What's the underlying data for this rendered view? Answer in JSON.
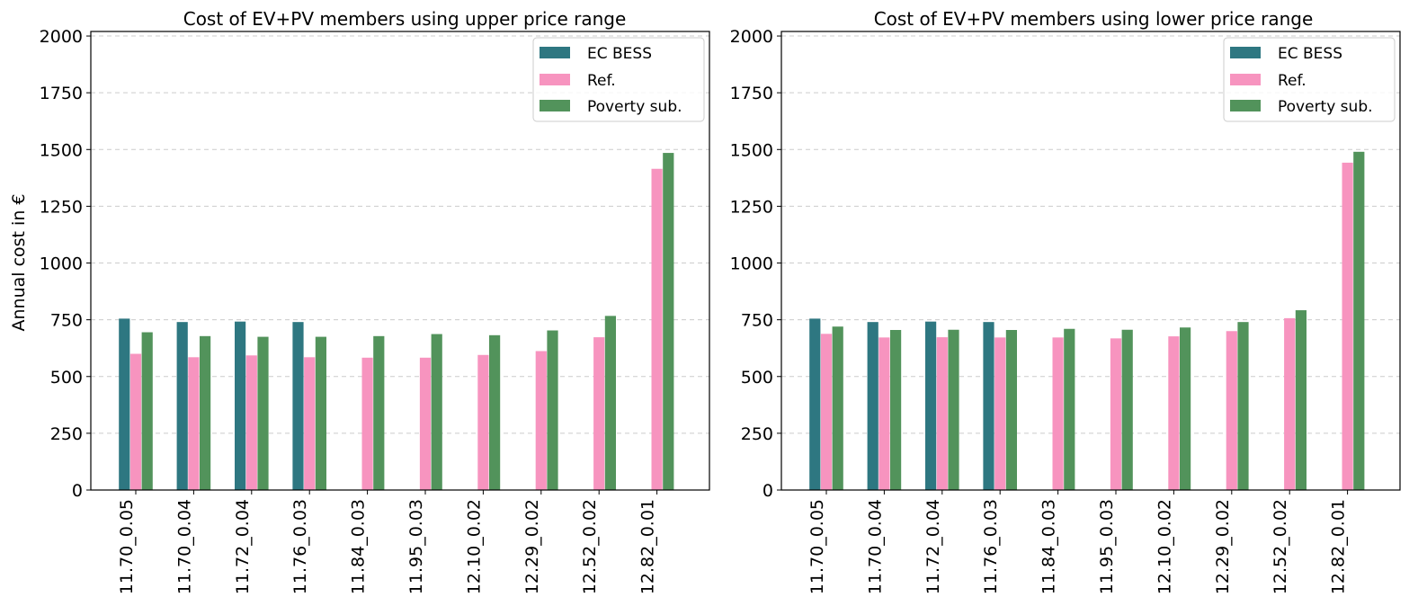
{
  "figure": {
    "ylabel": "Annual cost in €"
  },
  "legend_labels": [
    "EC BESS",
    "Ref.",
    "Poverty sub."
  ],
  "colors": {
    "ec_bess": "#2e7781",
    "ref": "#f794bf",
    "poverty": "#52935b",
    "grid": "#cccccc",
    "axis": "#000000"
  },
  "chart_data": [
    {
      "type": "bar",
      "title": "Cost of EV+PV members using upper price range",
      "xlabel": "",
      "ylabel": "Annual cost in €",
      "ylim": [
        0,
        2020
      ],
      "yticks": [
        0,
        250,
        500,
        750,
        1000,
        1250,
        1500,
        1750,
        2000
      ],
      "grid": "y-dashed",
      "legend_position": "top-right",
      "categories": [
        "11.70_0.05",
        "11.70_0.04",
        "11.72_0.04",
        "11.76_0.03",
        "11.84_0.03",
        "11.95_0.03",
        "12.10_0.02",
        "12.29_0.02",
        "12.52_0.02",
        "12.82_0.01"
      ],
      "series": [
        {
          "name": "EC BESS",
          "values": [
            755,
            740,
            742,
            740,
            0,
            0,
            0,
            0,
            0,
            0
          ]
        },
        {
          "name": "Ref.",
          "values": [
            600,
            585,
            593,
            585,
            583,
            583,
            595,
            612,
            673,
            1415
          ]
        },
        {
          "name": "Poverty sub.",
          "values": [
            695,
            678,
            675,
            675,
            678,
            687,
            682,
            703,
            767,
            1485
          ]
        }
      ]
    },
    {
      "type": "bar",
      "title": "Cost of EV+PV members using  lower price range",
      "xlabel": "",
      "ylabel": "",
      "ylim": [
        0,
        2020
      ],
      "yticks": [
        0,
        250,
        500,
        750,
        1000,
        1250,
        1500,
        1750,
        2000
      ],
      "grid": "y-dashed",
      "legend_position": "top-right",
      "categories": [
        "11.70_0.05",
        "11.70_0.04",
        "11.72_0.04",
        "11.76_0.03",
        "11.84_0.03",
        "11.95_0.03",
        "12.10_0.02",
        "12.29_0.02",
        "12.52_0.02",
        "12.82_0.01"
      ],
      "series": [
        {
          "name": "EC BESS",
          "values": [
            755,
            740,
            742,
            740,
            0,
            0,
            0,
            0,
            0,
            0
          ]
        },
        {
          "name": "Ref.",
          "values": [
            688,
            672,
            673,
            672,
            672,
            668,
            677,
            700,
            757,
            1442
          ]
        },
        {
          "name": "Poverty sub.",
          "values": [
            720,
            705,
            706,
            705,
            710,
            706,
            716,
            740,
            792,
            1490
          ]
        }
      ]
    }
  ]
}
